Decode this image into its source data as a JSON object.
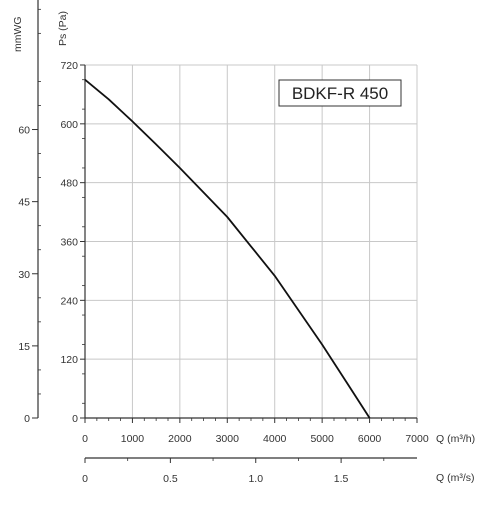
{
  "chart_data": {
    "type": "line",
    "title": "",
    "legend_box": "BDKF-R 450",
    "x": [
      0,
      500,
      1000,
      1500,
      2000,
      2500,
      3000,
      3500,
      4000,
      4500,
      5000,
      5500,
      6000
    ],
    "series": [
      {
        "values": [
          690,
          650,
          605,
          558,
          510,
          460,
          410,
          350,
          290,
          220,
          150,
          75,
          0
        ]
      }
    ],
    "xlabel": "Q (m³/h)",
    "xlim": [
      0,
      7000
    ],
    "xticks": [
      "0",
      "1000",
      "2000",
      "3000",
      "4000",
      "5000",
      "6000",
      "7000"
    ],
    "ylabel": "Ps (Pa)",
    "ylim": [
      0,
      720
    ],
    "yticks": [
      "0",
      "120",
      "240",
      "360",
      "480",
      "600",
      "720"
    ],
    "secondary_y": {
      "label": "mmWG",
      "ticks": [
        "0",
        "15",
        "30",
        "45",
        "60"
      ]
    },
    "secondary_x": {
      "label": "Q (m³/s)",
      "ticks": [
        "0",
        "0.5",
        "1.0",
        "1.5"
      ]
    },
    "grid": true,
    "line_color": "#111111",
    "grid_color": "#c8c8c8"
  }
}
